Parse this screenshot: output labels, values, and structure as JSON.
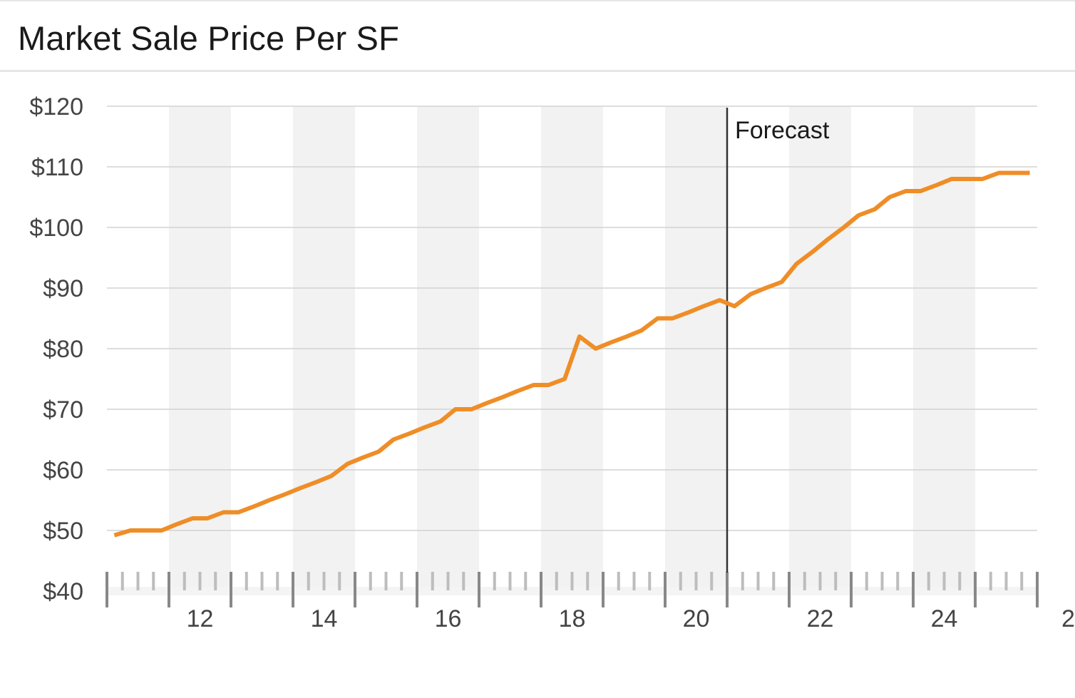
{
  "panel": {
    "title": "Market Sale Price Per SF"
  },
  "chart_data": {
    "type": "line",
    "title": "Market Sale Price Per SF",
    "xlabel": "",
    "ylabel": "",
    "x_tick_labels": [
      "12",
      "14",
      "16",
      "18",
      "20",
      "22",
      "24",
      "2"
    ],
    "y_tick_labels": [
      "$120",
      "$110",
      "$100",
      "$90",
      "$80",
      "$70",
      "$60",
      "$50",
      "$40"
    ],
    "ylim": [
      40,
      120
    ],
    "xlim": [
      2010.5,
      2025.5
    ],
    "grid": true,
    "shaded_year_bands": true,
    "forecast": {
      "label": "Forecast",
      "x": 2020.5
    },
    "series": [
      {
        "color": "#ef8d27",
        "x": [
          2010.62,
          2010.88,
          2011.12,
          2011.38,
          2011.62,
          2011.88,
          2012.12,
          2012.38,
          2012.62,
          2012.88,
          2013.12,
          2013.38,
          2013.62,
          2013.88,
          2014.12,
          2014.38,
          2014.62,
          2014.88,
          2015.12,
          2015.38,
          2015.62,
          2015.88,
          2016.12,
          2016.38,
          2016.62,
          2016.88,
          2017.12,
          2017.38,
          2017.62,
          2017.88,
          2018.12,
          2018.38,
          2018.62,
          2018.88,
          2019.12,
          2019.38,
          2019.62,
          2019.88,
          2020.12,
          2020.38,
          2020.62,
          2020.88,
          2021.12,
          2021.38,
          2021.62,
          2021.88,
          2022.12,
          2022.38,
          2022.62,
          2022.88,
          2023.12,
          2023.38,
          2023.62,
          2023.88,
          2024.12,
          2024.38,
          2024.62,
          2024.88,
          2025.12,
          2025.38
        ],
        "values": [
          49.2,
          50.0,
          50.0,
          50.0,
          51.0,
          52.0,
          52.0,
          53.0,
          53.0,
          54.0,
          55.0,
          56.0,
          57.0,
          58.0,
          59.0,
          61.0,
          62.0,
          63.0,
          65.0,
          66.0,
          67.0,
          68.0,
          70.0,
          70.0,
          71.0,
          72.0,
          73.0,
          74.0,
          74.0,
          75.0,
          82.0,
          80.0,
          81.0,
          82.0,
          83.0,
          85.0,
          85.0,
          86.0,
          87.0,
          88.0,
          87.0,
          89.0,
          90.0,
          91.0,
          94.0,
          96.0,
          98.0,
          100.0,
          102.0,
          103.0,
          105.0,
          106.0,
          106.0,
          107.0,
          108.0,
          108.0,
          108.0,
          109.0,
          109.0,
          109.0
        ]
      }
    ]
  }
}
